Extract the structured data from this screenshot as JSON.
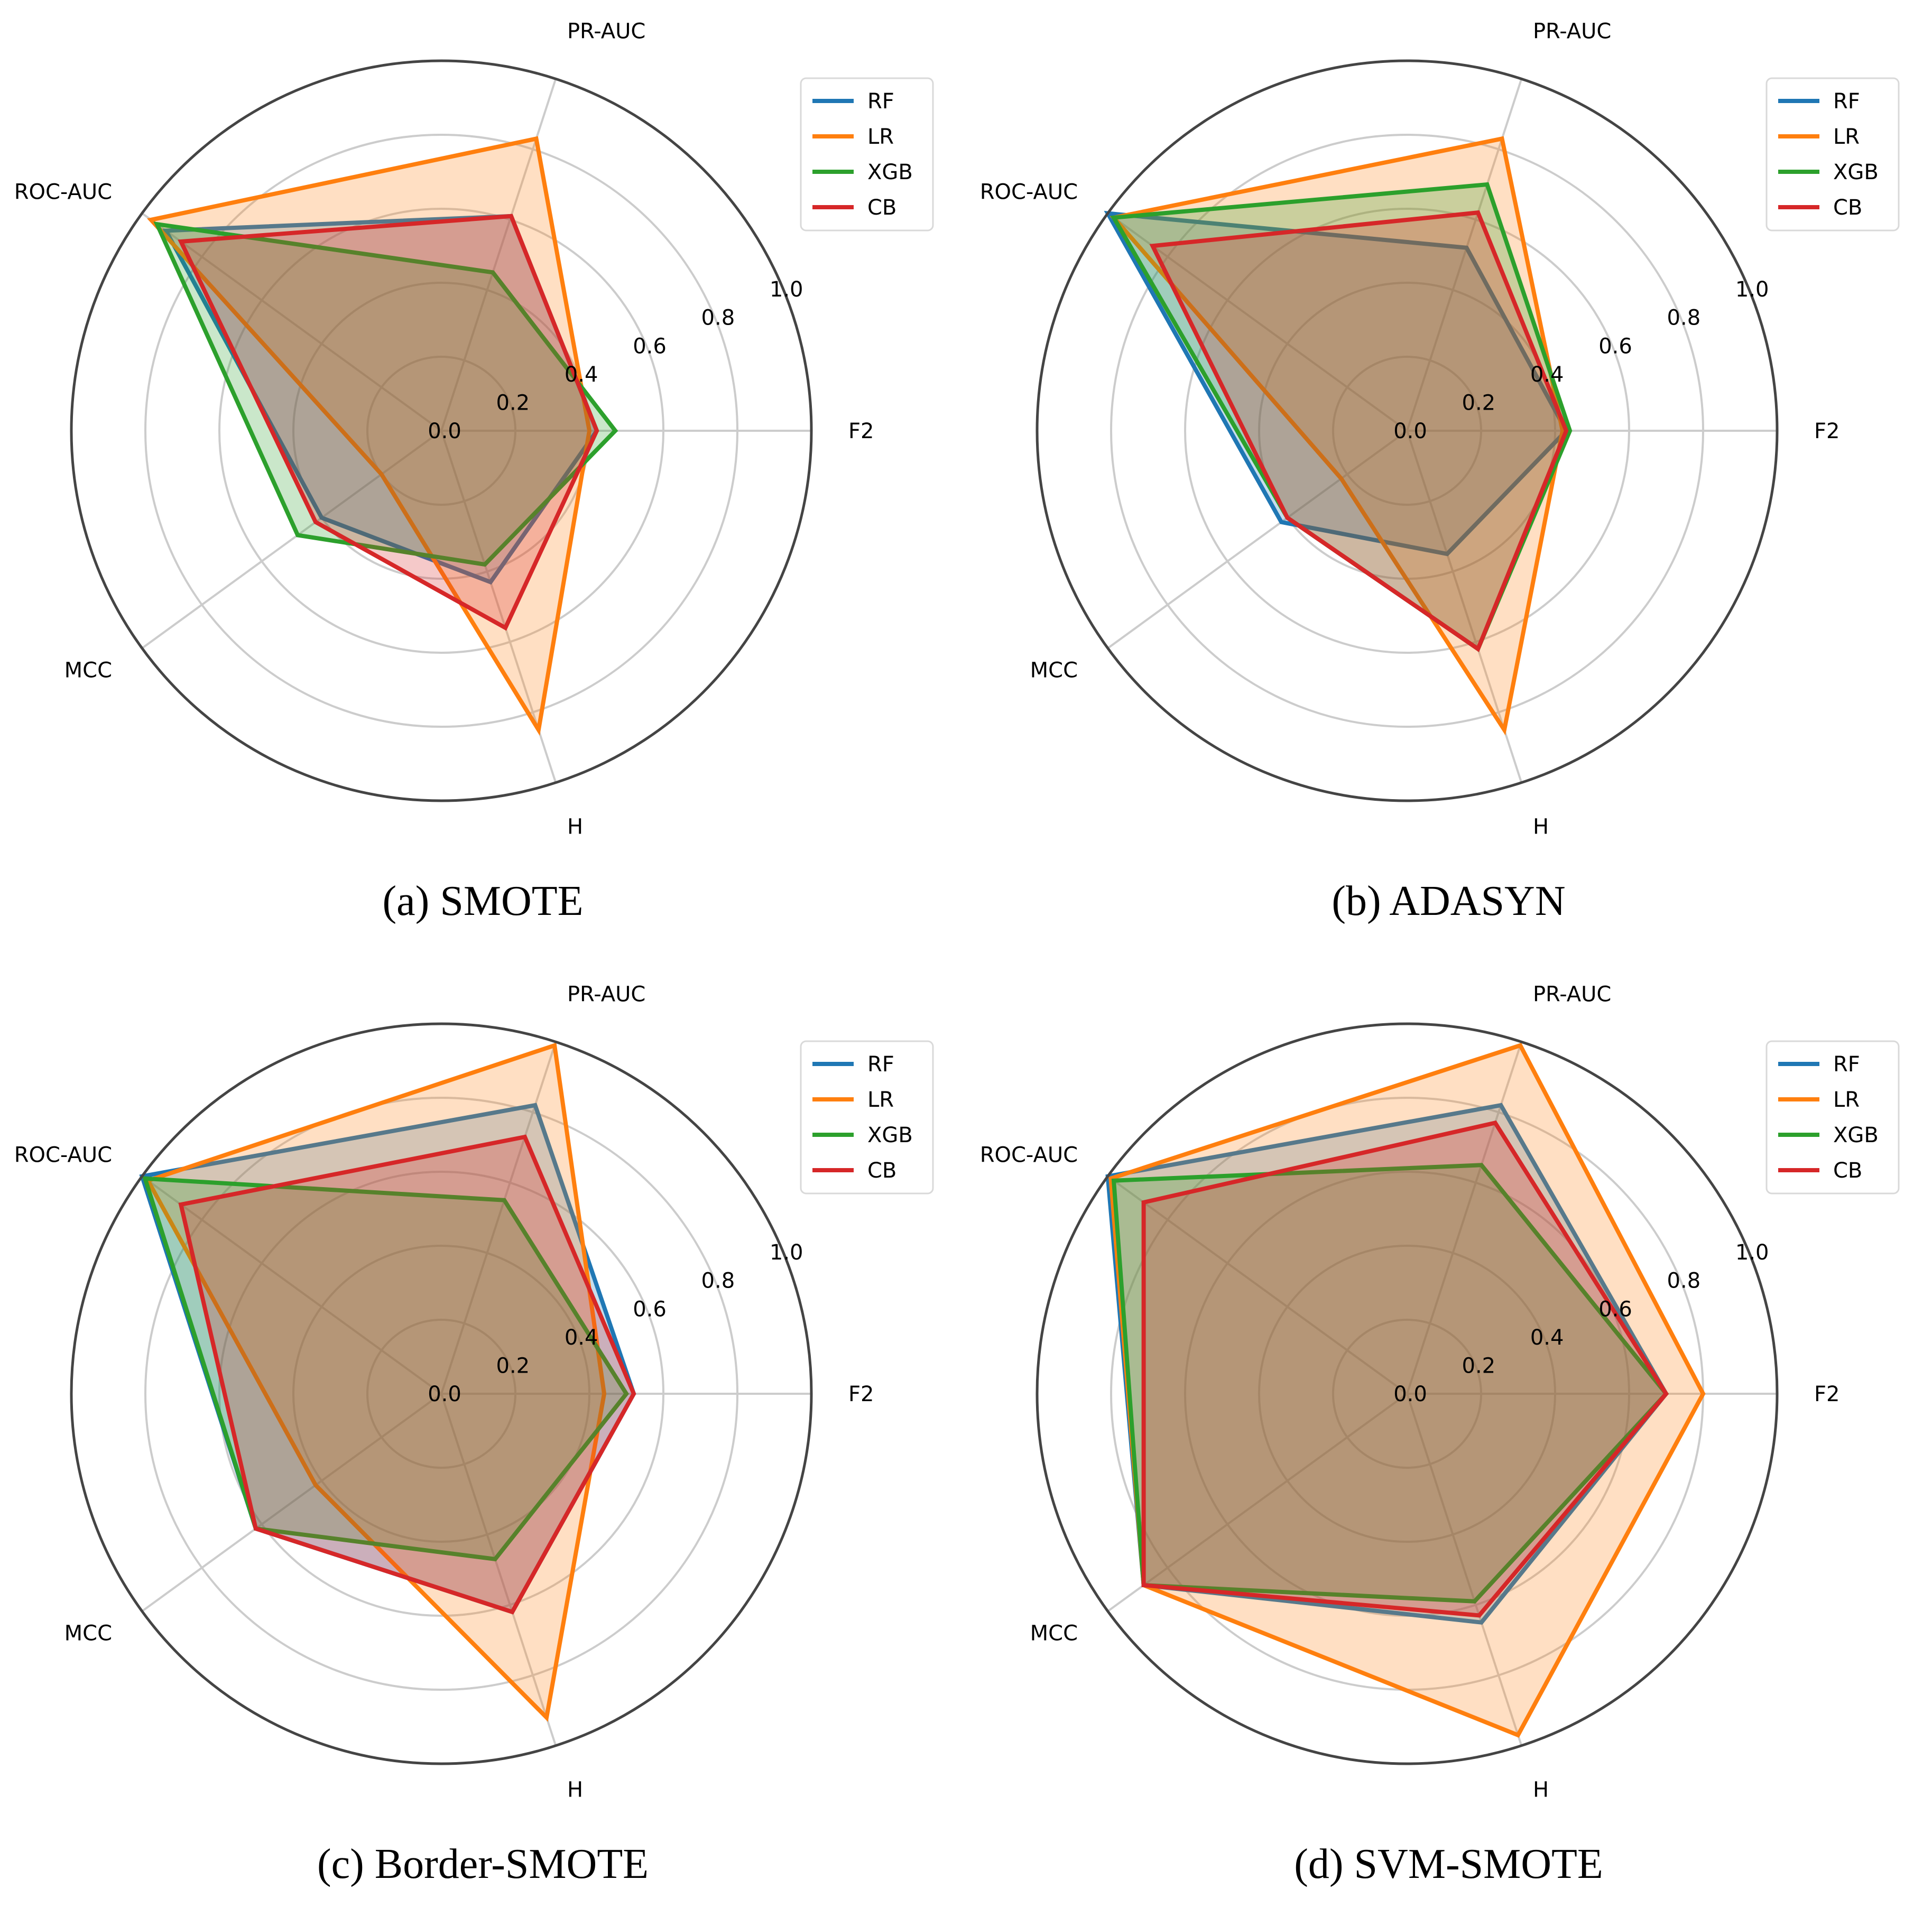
{
  "figure": {
    "series_names": [
      "RF",
      "LR",
      "XGB",
      "CB"
    ],
    "series_colors": {
      "RF": "#1f77b4",
      "LR": "#ff7f0e",
      "XGB": "#2ca02c",
      "CB": "#d62728"
    }
  },
  "chart_data": [
    {
      "type": "radar",
      "caption": "(a) SMOTE",
      "axes": [
        "F2",
        "PR-AUC",
        "ROC-AUC",
        "MCC",
        "H"
      ],
      "ticks": [
        "0.0",
        "0.2",
        "0.4",
        "0.6",
        "0.8",
        "1.0"
      ],
      "rlim": [
        0,
        1
      ],
      "legend": [
        "RF",
        "LR",
        "XGB",
        "CB"
      ],
      "series": [
        {
          "name": "RF",
          "values": [
            0.42,
            0.61,
            0.92,
            0.4,
            0.43
          ]
        },
        {
          "name": "LR",
          "values": [
            0.4,
            0.83,
            0.97,
            0.2,
            0.85
          ]
        },
        {
          "name": "XGB",
          "values": [
            0.47,
            0.45,
            0.95,
            0.48,
            0.38
          ]
        },
        {
          "name": "CB",
          "values": [
            0.42,
            0.61,
            0.87,
            0.42,
            0.56
          ]
        }
      ]
    },
    {
      "type": "radar",
      "caption": "(b) ADASYN",
      "axes": [
        "F2",
        "PR-AUC",
        "ROC-AUC",
        "MCC",
        "H"
      ],
      "ticks": [
        "0.0",
        "0.2",
        "0.4",
        "0.6",
        "0.8",
        "1.0"
      ],
      "rlim": [
        0,
        1
      ],
      "legend": [
        "RF",
        "LR",
        "XGB",
        "CB"
      ],
      "series": [
        {
          "name": "RF",
          "values": [
            0.43,
            0.52,
            1.0,
            0.42,
            0.35
          ]
        },
        {
          "name": "LR",
          "values": [
            0.42,
            0.83,
            0.98,
            0.22,
            0.85
          ]
        },
        {
          "name": "XGB",
          "values": [
            0.44,
            0.7,
            0.98,
            0.4,
            0.62
          ]
        },
        {
          "name": "CB",
          "values": [
            0.43,
            0.62,
            0.85,
            0.4,
            0.62
          ]
        }
      ]
    },
    {
      "type": "radar",
      "caption": "(c) Border-SMOTE",
      "axes": [
        "F2",
        "PR-AUC",
        "ROC-AUC",
        "MCC",
        "H"
      ],
      "ticks": [
        "0.0",
        "0.2",
        "0.4",
        "0.6",
        "0.8",
        "1.0"
      ],
      "rlim": [
        0,
        1
      ],
      "legend": [
        "RF",
        "LR",
        "XGB",
        "CB"
      ],
      "series": [
        {
          "name": "RF",
          "values": [
            0.52,
            0.82,
            1.0,
            0.62,
            0.62
          ]
        },
        {
          "name": "LR",
          "values": [
            0.44,
            0.99,
            0.98,
            0.42,
            0.92
          ]
        },
        {
          "name": "XGB",
          "values": [
            0.5,
            0.55,
            0.99,
            0.62,
            0.47
          ]
        },
        {
          "name": "CB",
          "values": [
            0.52,
            0.73,
            0.87,
            0.62,
            0.62
          ]
        }
      ]
    },
    {
      "type": "radar",
      "caption": "(d) SVM-SMOTE",
      "axes": [
        "F2",
        "PR-AUC",
        "ROC-AUC",
        "MCC",
        "H"
      ],
      "ticks": [
        "0.0",
        "0.2",
        "0.4",
        "0.6",
        "0.8",
        "1.0"
      ],
      "rlim": [
        0,
        1
      ],
      "legend": [
        "RF",
        "LR",
        "XGB",
        "CB"
      ],
      "series": [
        {
          "name": "RF",
          "values": [
            0.7,
            0.82,
            1.0,
            0.88,
            0.65
          ]
        },
        {
          "name": "LR",
          "values": [
            0.8,
            0.99,
            0.99,
            0.88,
            0.97
          ]
        },
        {
          "name": "XGB",
          "values": [
            0.7,
            0.65,
            0.98,
            0.88,
            0.59
          ]
        },
        {
          "name": "CB",
          "values": [
            0.7,
            0.77,
            0.88,
            0.88,
            0.63
          ]
        }
      ]
    }
  ]
}
